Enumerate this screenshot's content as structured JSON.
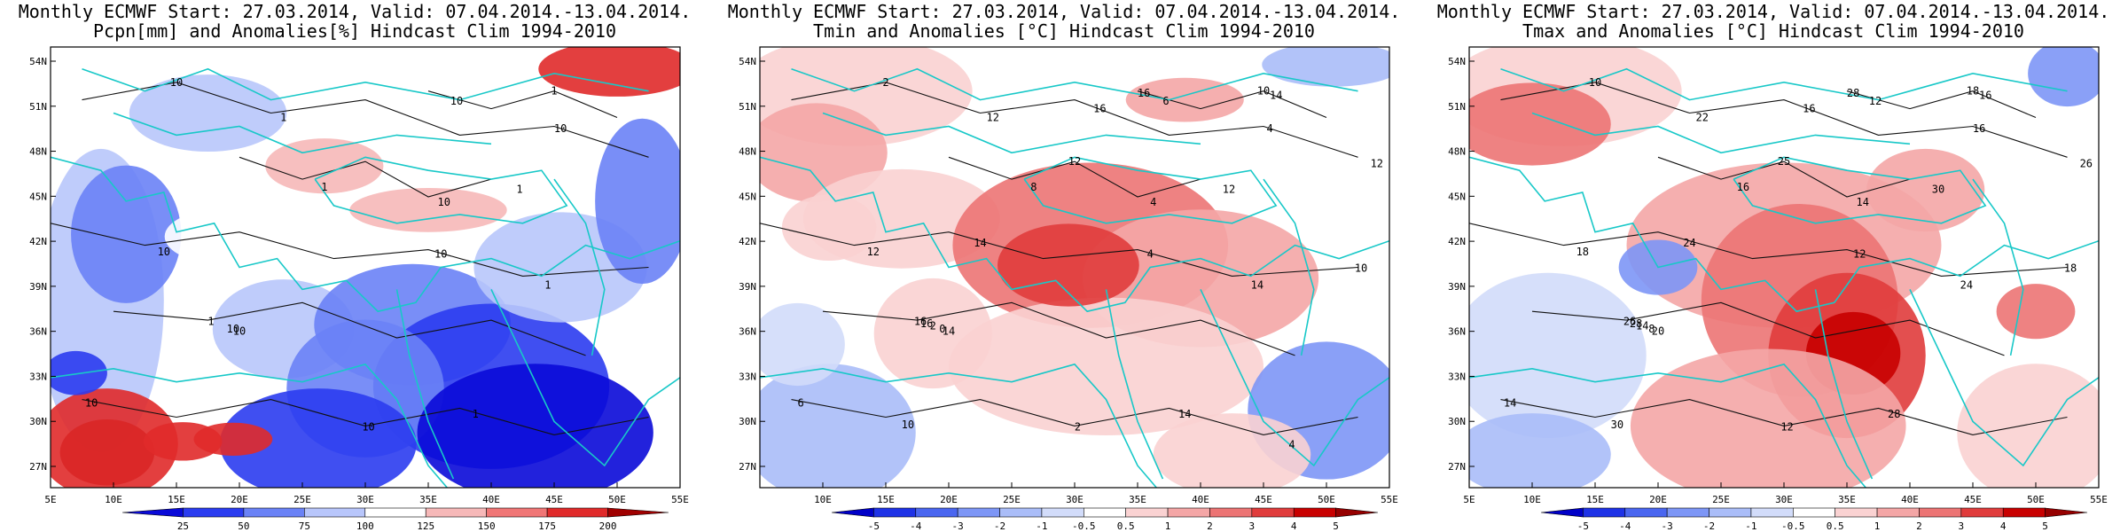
{
  "panels": [
    {
      "id": "pcpn",
      "title_line1": "Monthly ECMWF Start: 27.03.2014, Valid: 07.04.2014.-13.04.2014.",
      "title_line2": "Pcpn[mm] and Anomalies[%] Hindcast Clim 1994-2010",
      "lat_labels": [
        "54N",
        "51N",
        "48N",
        "45N",
        "42N",
        "39N",
        "36N",
        "33N",
        "30N",
        "27N"
      ],
      "lon_labels": [
        "5E",
        "10E",
        "15E",
        "20E",
        "25E",
        "30E",
        "35E",
        "40E",
        "45E",
        "50E",
        "55E"
      ],
      "colorbar": [
        "25",
        "50",
        "75",
        "100",
        "125",
        "150",
        "175",
        "200"
      ],
      "colorbar_colors": [
        "#0a0ad8",
        "#2b3cf0",
        "#6a82f6",
        "#b8c6fb",
        "#ffffff",
        "#f6b8b8",
        "#f07676",
        "#e02a2a",
        "#a00000"
      ],
      "contour_labels": [
        "10",
        "10",
        "10",
        "10",
        "10",
        "10",
        "10",
        "10",
        "10",
        "10",
        "1",
        "1",
        "1",
        "1",
        "1",
        "1",
        "1"
      ]
    },
    {
      "id": "tmin",
      "title_line1": "Monthly ECMWF Start: 27.03.2014, Valid: 07.04.2014.-13.04.2014.",
      "title_line2": "Tmin and Anomalies [°C] Hindcast Clim 1994-2010",
      "lat_labels": [
        "54N",
        "51N",
        "48N",
        "45N",
        "42N",
        "39N",
        "36N",
        "33N",
        "30N",
        "27N"
      ],
      "lon_labels": [
        "10E",
        "15E",
        "20E",
        "25E",
        "30E",
        "35E",
        "40E",
        "45E",
        "50E",
        "55E"
      ],
      "colorbar": [
        "-5",
        "-4",
        "-3",
        "-2",
        "-1",
        "-0.5",
        "0.5",
        "1",
        "2",
        "3",
        "4",
        "5"
      ],
      "colorbar_colors": [
        "#0000c8",
        "#1e32e6",
        "#4a66f0",
        "#7d96f6",
        "#aabdf8",
        "#d2dcfa",
        "#ffffff",
        "#fad2d2",
        "#f4a6a6",
        "#ec7474",
        "#e03c3c",
        "#c80000",
        "#960000"
      ],
      "contour_labels": [
        "2",
        "4",
        "0",
        "2",
        "4",
        "6",
        "4",
        "12",
        "14",
        "6",
        "8",
        "10",
        "12",
        "14",
        "16",
        "14",
        "12",
        "16",
        "12",
        "14",
        "16",
        "10",
        "12",
        "14",
        "16",
        "10",
        "2",
        "4"
      ]
    },
    {
      "id": "tmax",
      "title_line1": "Monthly ECMWF Start: 27.03.2014, Valid: 07.04.2014.-13.04.2014.",
      "title_line2": "Tmax and Anomalies [°C] Hindcast Clim 1994-2010",
      "lat_labels": [
        "54N",
        "51N",
        "48N",
        "45N",
        "42N",
        "39N",
        "36N",
        "33N",
        "30N",
        "27N"
      ],
      "lon_labels": [
        "5E",
        "10E",
        "15E",
        "20E",
        "25E",
        "30E",
        "35E",
        "40E",
        "45E",
        "50E",
        "55E"
      ],
      "colorbar": [
        "-5",
        "-4",
        "-3",
        "-2",
        "-1",
        "-0.5",
        "0.5",
        "1",
        "2",
        "3",
        "4",
        "5"
      ],
      "colorbar_colors": [
        "#0000c8",
        "#1e32e6",
        "#4a66f0",
        "#7d96f6",
        "#aabdf8",
        "#d2dcfa",
        "#ffffff",
        "#fad2d2",
        "#f4a6a6",
        "#ec7474",
        "#e03c3c",
        "#c80000",
        "#960000"
      ],
      "contour_labels": [
        "10",
        "12",
        "8",
        "12",
        "14",
        "12",
        "16",
        "18",
        "20",
        "14",
        "16",
        "18",
        "22",
        "24",
        "26",
        "28",
        "30",
        "28",
        "26",
        "24",
        "28",
        "30",
        "25",
        "16",
        "16",
        "18",
        "14"
      ]
    }
  ]
}
